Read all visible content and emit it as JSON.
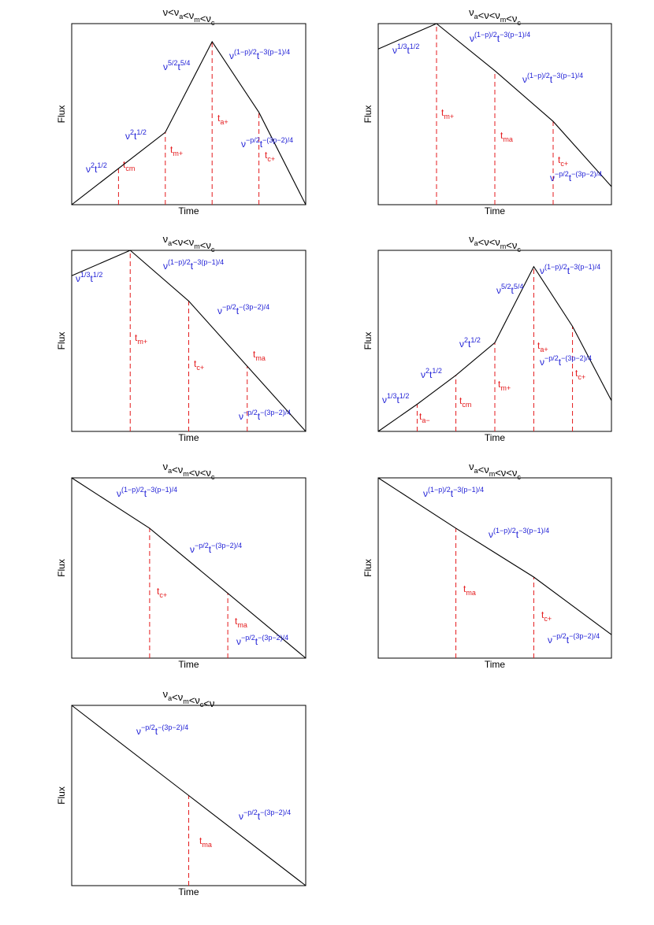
{
  "colors": {
    "curve": "#000000",
    "break_lines": "#e41a1c",
    "break_labels": "#e41a1c",
    "slope_labels": "#1f1fd6"
  },
  "chart_data": [
    {
      "type": "line",
      "title": [
        "ν",
        "<",
        "ν",
        "a",
        "<",
        "ν",
        "m",
        "<",
        "ν",
        "c"
      ],
      "xlabel": "Time",
      "ylabel": "Flux",
      "grid": false,
      "log_axes": true,
      "tick_labels": false,
      "curve": {
        "x": [
          0.0,
          0.4,
          0.6,
          0.8,
          1.0
        ],
        "y": [
          0.0,
          0.4,
          0.9,
          0.51,
          0.0
        ]
      },
      "breaks": [
        {
          "x": 0.2,
          "label": "t",
          "sub": "cm"
        },
        {
          "x": 0.4,
          "label": "t",
          "sub": "m+"
        },
        {
          "x": 0.6,
          "label": "t",
          "sub": "a+"
        },
        {
          "x": 0.8,
          "label": "t",
          "sub": "c+"
        }
      ],
      "slopes": [
        {
          "nu": "2",
          "t": "1/2"
        },
        {
          "nu": "2",
          "t": "1/2"
        },
        {
          "nu": "5/2",
          "t": "5/4"
        },
        {
          "nu": "(1−p)/2",
          "t": "−3(p−1)/4"
        },
        {
          "nu": "−p/2",
          "t": "−(3p−2)/4"
        }
      ]
    },
    {
      "type": "line",
      "title": [
        "ν",
        "a",
        "<",
        "ν",
        "<",
        "ν",
        "m",
        "<",
        "ν",
        "c"
      ],
      "xlabel": "Time",
      "ylabel": "Flux",
      "grid": false,
      "log_axes": true,
      "tick_labels": false,
      "curve": {
        "x": [
          0.0,
          0.25,
          0.5,
          0.75,
          1.0
        ],
        "y": [
          0.86,
          1.0,
          0.74,
          0.46,
          0.1
        ]
      },
      "breaks": [
        {
          "x": 0.25,
          "label": "t",
          "sub": "m+"
        },
        {
          "x": 0.5,
          "label": "t",
          "sub": "ma"
        },
        {
          "x": 0.75,
          "label": "t",
          "sub": "c+"
        }
      ],
      "slopes": [
        {
          "nu": "1/3",
          "t": "1/2"
        },
        {
          "nu": "(1−p)/2",
          "t": "−3(p−1)/4"
        },
        {
          "nu": "(1−p)/2",
          "t": "−3(p−1)/4"
        },
        {
          "nu": "−p/2",
          "t": "−(3p−2)/4"
        }
      ]
    },
    {
      "type": "line",
      "title": [
        "ν",
        "a",
        "<",
        "ν",
        "<",
        "ν",
        "m",
        "<",
        "ν",
        "c"
      ],
      "xlabel": "Time",
      "ylabel": "Flux",
      "grid": false,
      "log_axes": true,
      "tick_labels": false,
      "curve": {
        "x": [
          0.0,
          0.25,
          0.5,
          0.75,
          1.0
        ],
        "y": [
          0.86,
          1.0,
          0.72,
          0.36,
          0.0
        ]
      },
      "breaks": [
        {
          "x": 0.25,
          "label": "t",
          "sub": "m+"
        },
        {
          "x": 0.5,
          "label": "t",
          "sub": "c+"
        },
        {
          "x": 0.75,
          "label": "t",
          "sub": "ma"
        }
      ],
      "slopes": [
        {
          "nu": "1/3",
          "t": "1/2"
        },
        {
          "nu": "(1−p)/2",
          "t": "−3(p−1)/4"
        },
        {
          "nu": "−p/2",
          "t": "−(3p−2)/4"
        },
        {
          "nu": "−p/2",
          "t": "−(3p−2)/4"
        }
      ]
    },
    {
      "type": "line",
      "title": [
        "ν",
        "a",
        "<",
        "ν",
        "<",
        "ν",
        "m",
        "<",
        "ν",
        "c"
      ],
      "xlabel": "Time",
      "ylabel": "Flux",
      "grid": false,
      "log_axes": true,
      "tick_labels": false,
      "curve": {
        "x": [
          0.0,
          0.167,
          0.333,
          0.5,
          0.667,
          0.833,
          1.0
        ],
        "y": [
          0.0,
          0.15,
          0.31,
          0.49,
          0.91,
          0.58,
          0.17
        ]
      },
      "breaks": [
        {
          "x": 0.167,
          "label": "t",
          "sub": "a−"
        },
        {
          "x": 0.333,
          "label": "t",
          "sub": "cm"
        },
        {
          "x": 0.5,
          "label": "t",
          "sub": "m+"
        },
        {
          "x": 0.667,
          "label": "t",
          "sub": "a+"
        },
        {
          "x": 0.833,
          "label": "t",
          "sub": "c+"
        }
      ],
      "slopes": [
        {
          "nu": "1/3",
          "t": "1/2"
        },
        {
          "nu": "2",
          "t": "1/2"
        },
        {
          "nu": "2",
          "t": "1/2"
        },
        {
          "nu": "5/2",
          "t": "5/4"
        },
        {
          "nu": "(1−p)/2",
          "t": "−3(p−1)/4"
        },
        {
          "nu": "−p/2",
          "t": "−(3p−2)/4"
        }
      ]
    },
    {
      "type": "line",
      "title": [
        "ν",
        "a",
        "<",
        "ν",
        "m",
        "<",
        "ν",
        "<",
        "ν",
        "c"
      ],
      "xlabel": "Time",
      "ylabel": "Flux",
      "grid": false,
      "log_axes": true,
      "tick_labels": false,
      "curve": {
        "x": [
          0.0,
          0.333,
          0.667,
          1.0
        ],
        "y": [
          1.0,
          0.72,
          0.36,
          0.0
        ]
      },
      "breaks": [
        {
          "x": 0.333,
          "label": "t",
          "sub": "c+"
        },
        {
          "x": 0.667,
          "label": "t",
          "sub": "ma"
        }
      ],
      "slopes": [
        {
          "nu": "(1−p)/2",
          "t": "−3(p−1)/4"
        },
        {
          "nu": "−p/2",
          "t": "−(3p−2)/4"
        },
        {
          "nu": "−p/2",
          "t": "−(3p−2)/4"
        }
      ]
    },
    {
      "type": "line",
      "title": [
        "ν",
        "a",
        "<",
        "ν",
        "m",
        "<",
        "ν",
        "<",
        "ν",
        "c"
      ],
      "xlabel": "Time",
      "ylabel": "Flux",
      "grid": false,
      "log_axes": true,
      "tick_labels": false,
      "curve": {
        "x": [
          0.0,
          0.333,
          0.667,
          1.0
        ],
        "y": [
          1.0,
          0.72,
          0.45,
          0.13
        ]
      },
      "breaks": [
        {
          "x": 0.333,
          "label": "t",
          "sub": "ma"
        },
        {
          "x": 0.667,
          "label": "t",
          "sub": "c+"
        }
      ],
      "slopes": [
        {
          "nu": "(1−p)/2",
          "t": "−3(p−1)/4"
        },
        {
          "nu": "(1−p)/2",
          "t": "−3(p−1)/4"
        },
        {
          "nu": "−p/2",
          "t": "−(3p−2)/4"
        }
      ]
    },
    {
      "type": "line",
      "title": [
        "ν",
        "a",
        "<",
        "ν",
        "m",
        "<",
        "ν",
        "c",
        "<",
        "ν"
      ],
      "xlabel": "Time",
      "ylabel": "Flux",
      "grid": false,
      "log_axes": true,
      "tick_labels": false,
      "curve": {
        "x": [
          0.0,
          0.5,
          1.0
        ],
        "y": [
          1.0,
          0.5,
          0.0
        ]
      },
      "breaks": [
        {
          "x": 0.5,
          "label": "t",
          "sub": "ma"
        }
      ],
      "slopes": [
        {
          "nu": "−p/2",
          "t": "−(3p−2)/4"
        },
        {
          "nu": "−p/2",
          "t": "−(3p−2)/4"
        }
      ]
    }
  ]
}
